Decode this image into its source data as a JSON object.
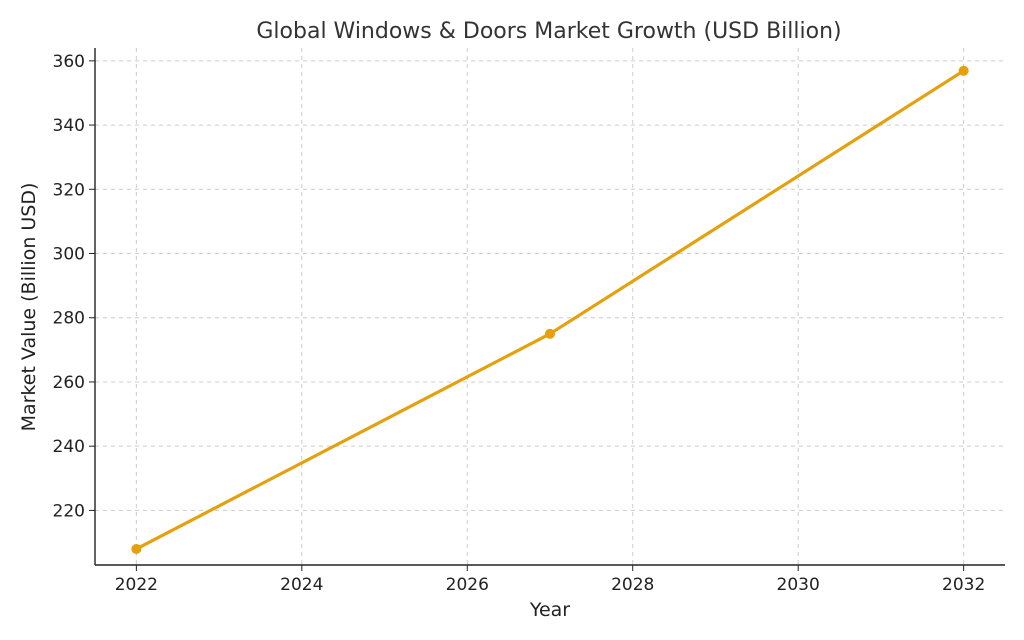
{
  "chart_data": {
    "type": "line",
    "title": "Global Windows & Doors Market Growth (USD Billion)",
    "xlabel": "Year",
    "ylabel": "Market Value (Billion USD)",
    "x_ticks": [
      2022,
      2024,
      2026,
      2028,
      2030,
      2032
    ],
    "y_ticks": [
      220,
      240,
      260,
      280,
      300,
      320,
      340,
      360
    ],
    "xlim": [
      2021.5,
      2032.5
    ],
    "ylim": [
      203,
      364
    ],
    "grid": true,
    "series": [
      {
        "color": "#e5a00d",
        "points": [
          {
            "x": 2022,
            "y": 208
          },
          {
            "x": 2027,
            "y": 275
          },
          {
            "x": 2032,
            "y": 356.9
          }
        ]
      }
    ]
  }
}
